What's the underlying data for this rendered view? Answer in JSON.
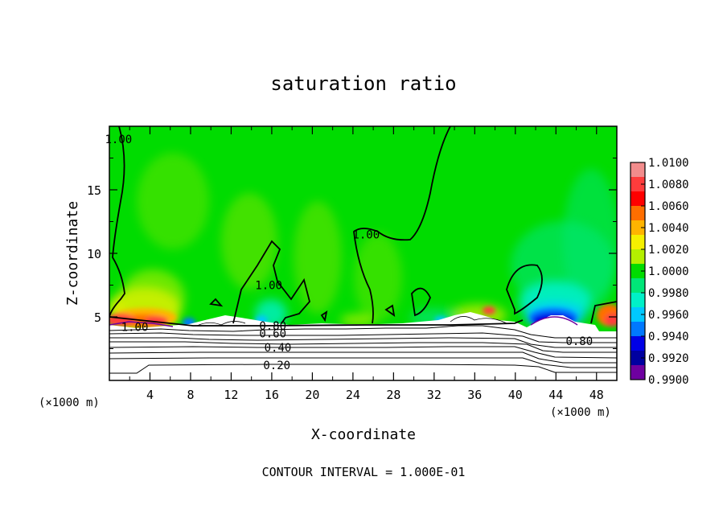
{
  "chart_data": {
    "type": "heatmap",
    "title": "saturation ratio",
    "xlabel": "X-coordinate",
    "ylabel": "Z-coordinate",
    "x_unit_left": "(×1000 m)",
    "x_unit_right": "(×1000 m)",
    "xlim": [
      0,
      50
    ],
    "ylim": [
      0,
      20
    ],
    "x_ticks": [
      "4",
      "8",
      "12",
      "16",
      "20",
      "24",
      "28",
      "32",
      "36",
      "40",
      "44",
      "48"
    ],
    "x_tick_values": [
      4,
      8,
      12,
      16,
      20,
      24,
      28,
      32,
      36,
      40,
      44,
      48
    ],
    "y_ticks": [
      "5",
      "10",
      "15"
    ],
    "y_tick_values": [
      5,
      10,
      15
    ],
    "colorbar": {
      "min": 0.99,
      "max": 1.01,
      "labels": [
        "1.0100",
        "1.0080",
        "1.0060",
        "1.0040",
        "1.0020",
        "1.0000",
        "0.9980",
        "0.9960",
        "0.9940",
        "0.9920",
        "0.9900"
      ],
      "colors": [
        "#f28c8c",
        "#ff3c3c",
        "#ff0000",
        "#ff6e00",
        "#ffb400",
        "#f5f000",
        "#b4f000",
        "#00dc00",
        "#00e678",
        "#00f0c8",
        "#00c8ff",
        "#0078ff",
        "#0000e6",
        "#0000a0",
        "#6e00a0"
      ]
    },
    "contour_labels": [
      {
        "text": "1.00",
        "x": 0.9,
        "z": 19.0
      },
      {
        "text": "1.00",
        "x": 25.3,
        "z": 11.5
      },
      {
        "text": "1.00",
        "x": 15.7,
        "z": 7.5
      },
      {
        "text": "1.00",
        "x": 2.5,
        "z": 4.2
      },
      {
        "text": "0.80",
        "x": 16.1,
        "z": 4.3
      },
      {
        "text": "0.60",
        "x": 16.1,
        "z": 3.7
      },
      {
        "text": "0.40",
        "x": 16.6,
        "z": 2.6
      },
      {
        "text": "0.20",
        "x": 16.5,
        "z": 1.2
      },
      {
        "text": "0.80",
        "x": 46.3,
        "z": 3.1
      }
    ],
    "grid": false,
    "legend": "colorbar-right"
  },
  "footer": "CONTOUR INTERVAL = 1.000E-01"
}
